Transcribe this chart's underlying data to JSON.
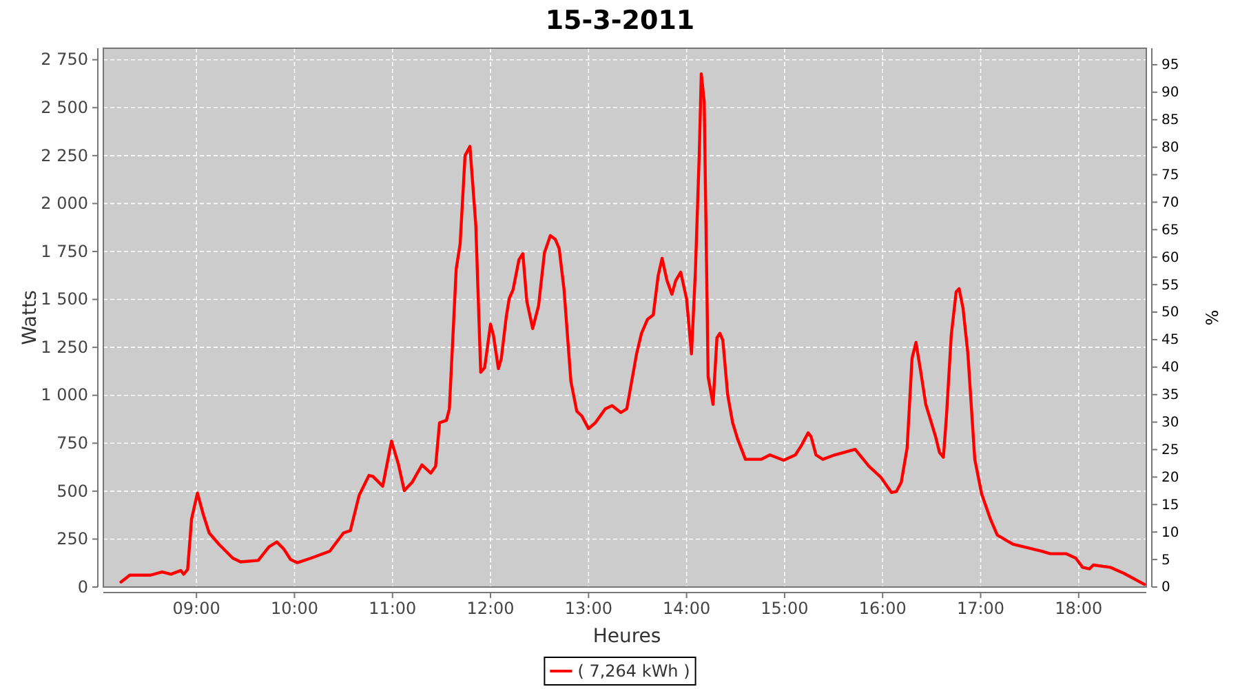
{
  "chart_data": {
    "type": "line",
    "title": "15-3-2011",
    "xlabel": "Heures",
    "ylabel": "Watts",
    "y2label": "%",
    "xlim": [
      8.05,
      18.69
    ],
    "xticks": [
      {
        "value": 9,
        "label": "09:00"
      },
      {
        "value": 10,
        "label": "10:00"
      },
      {
        "value": 11,
        "label": "11:00"
      },
      {
        "value": 12,
        "label": "12:00"
      },
      {
        "value": 13,
        "label": "13:00"
      },
      {
        "value": 14,
        "label": "14:00"
      },
      {
        "value": 15,
        "label": "15:00"
      },
      {
        "value": 16,
        "label": "16:00"
      },
      {
        "value": 17,
        "label": "17:00"
      },
      {
        "value": 18,
        "label": "18:00"
      }
    ],
    "ylim": [
      0,
      2810
    ],
    "yticks": [
      0,
      250,
      500,
      750,
      {
        "value": 1000,
        "label": "1 000"
      },
      {
        "value": 1250,
        "label": "1 250"
      },
      {
        "value": 1500,
        "label": "1 500"
      },
      {
        "value": 1750,
        "label": "1 750"
      },
      {
        "value": 2000,
        "label": "2 000"
      },
      {
        "value": 2250,
        "label": "2 250"
      },
      {
        "value": 2500,
        "label": "2 500"
      },
      {
        "value": 2750,
        "label": "2 750"
      }
    ],
    "y2lim": [
      0,
      98
    ],
    "y2ticks": [
      0,
      5,
      10,
      15,
      20,
      25,
      30,
      35,
      40,
      45,
      50,
      55,
      60,
      65,
      70,
      75,
      80,
      85,
      90,
      95
    ],
    "grid": true,
    "legend": "bottom",
    "marker": "none",
    "line_style": "solid",
    "series": [
      {
        "name": "( 7,264 kWh )",
        "color": "#ff0000",
        "x": [
          8.23,
          8.32,
          8.53,
          8.65,
          8.74,
          8.84,
          8.87,
          8.91,
          8.95,
          9.01,
          9.07,
          9.13,
          9.23,
          9.37,
          9.45,
          9.63,
          9.74,
          9.82,
          9.89,
          9.96,
          10.03,
          10.17,
          10.36,
          10.5,
          10.57,
          10.66,
          10.76,
          10.8,
          10.9,
          10.99,
          11.06,
          11.12,
          11.2,
          11.3,
          11.39,
          11.44,
          11.48,
          11.55,
          11.58,
          11.65,
          11.69,
          11.74,
          11.79,
          11.85,
          11.9,
          11.94,
          12.0,
          12.03,
          12.08,
          12.11,
          12.16,
          12.19,
          12.23,
          12.29,
          12.33,
          12.37,
          12.43,
          12.49,
          12.55,
          12.61,
          12.66,
          12.7,
          12.75,
          12.82,
          12.88,
          12.93,
          13.0,
          13.07,
          13.17,
          13.24,
          13.33,
          13.39,
          13.49,
          13.54,
          13.6,
          13.66,
          13.71,
          13.75,
          13.8,
          13.85,
          13.89,
          13.94,
          14.0,
          14.05,
          14.09,
          14.13,
          14.15,
          14.18,
          14.22,
          14.27,
          14.31,
          14.34,
          14.37,
          14.42,
          14.47,
          14.52,
          14.6,
          14.76,
          14.85,
          14.99,
          15.11,
          15.17,
          15.24,
          15.27,
          15.32,
          15.39,
          15.51,
          15.72,
          15.86,
          15.98,
          16.09,
          16.14,
          16.19,
          16.25,
          16.3,
          16.34,
          16.39,
          16.44,
          16.49,
          16.54,
          16.58,
          16.62,
          16.65,
          16.7,
          16.75,
          16.78,
          16.82,
          16.87,
          16.94,
          17.01,
          17.1,
          17.17,
          17.33,
          17.62,
          17.71,
          17.87,
          17.97,
          18.04,
          18.11,
          18.15,
          18.32,
          18.46,
          18.67
        ],
        "values": [
          26,
          62,
          62,
          79,
          67,
          86,
          67,
          91,
          354,
          490,
          378,
          282,
          223,
          151,
          131,
          139,
          210,
          235,
          199,
          144,
          127,
          151,
          187,
          282,
          294,
          479,
          582,
          577,
          526,
          761,
          641,
          503,
          546,
          637,
          594,
          630,
          857,
          869,
          929,
          1659,
          1790,
          2250,
          2298,
          1886,
          1120,
          1144,
          1371,
          1312,
          1139,
          1192,
          1407,
          1503,
          1551,
          1707,
          1738,
          1491,
          1348,
          1467,
          1743,
          1833,
          1814,
          1766,
          1551,
          1072,
          917,
          893,
          826,
          857,
          929,
          946,
          910,
          929,
          1216,
          1323,
          1395,
          1419,
          1623,
          1714,
          1599,
          1527,
          1599,
          1642,
          1503,
          1216,
          1646,
          2269,
          2676,
          2532,
          1096,
          953,
          1300,
          1323,
          1287,
          1000,
          857,
          773,
          666,
          666,
          689,
          661,
          689,
          737,
          804,
          785,
          689,
          666,
          689,
          718,
          630,
          574,
          493,
          498,
          546,
          725,
          1192,
          1276,
          1120,
          953,
          869,
          785,
          702,
          677,
          881,
          1312,
          1539,
          1556,
          1455,
          1216,
          666,
          486,
          354,
          271,
          223,
          187,
          174,
          174,
          151,
          103,
          95,
          115,
          103,
          72,
          14
        ]
      }
    ]
  }
}
